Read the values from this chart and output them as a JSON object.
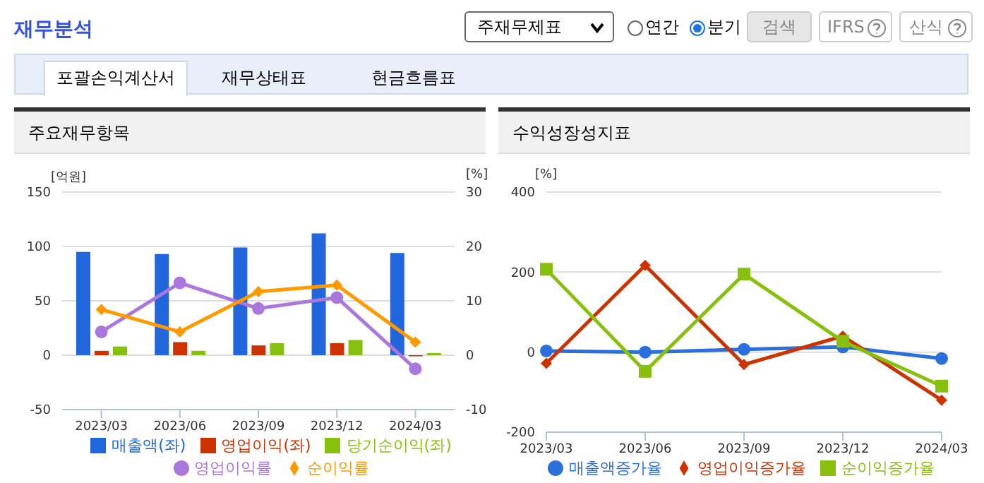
{
  "chart_data": [
    {
      "type": "other",
      "title": "재무분석",
      "annotations": [
        "주재무제표",
        "연간",
        "분기",
        "검색",
        "IFRS",
        "산식",
        "포괄손익계산서",
        "재무상태표",
        "현금흐름표"
      ]
    },
    {
      "type": "bar",
      "title": "주요재무항목",
      "ylabel": "[억원]",
      "y2label": "[%]",
      "categories": [
        "2023/03",
        "2023/06",
        "2023/09",
        "2023/12",
        "2024/03"
      ],
      "series": [
        {
          "name": "매출액(좌)",
          "color": "#2266dd",
          "values": [
            95,
            93,
            99,
            112,
            94
          ]
        },
        {
          "name": "영업이익(좌)",
          "color": "#cc3300",
          "values": [
            4,
            12,
            9,
            11,
            -1
          ]
        },
        {
          "name": "당기순이익(좌)",
          "color": "#88c010",
          "values": [
            8,
            4,
            11,
            14,
            2
          ]
        },
        {
          "name": "영업이익률",
          "type": "line",
          "axis": "y2",
          "marker": "circle",
          "color": "#aa77dd",
          "values": [
            4.3,
            13.3,
            8.6,
            10.6,
            -2.5
          ]
        },
        {
          "name": "순이익률",
          "type": "line",
          "axis": "y2",
          "marker": "diamond",
          "color": "#ff9900",
          "values": [
            8.4,
            4.3,
            11.7,
            12.9,
            2.4
          ]
        }
      ],
      "ylim": [
        -50,
        150
      ],
      "yticks": [
        -50,
        0,
        50,
        100,
        150
      ],
      "y2lim": [
        -10,
        30
      ],
      "y2ticks": [
        -10,
        0,
        10,
        20,
        30
      ],
      "grid": "y",
      "legend": "bottom"
    },
    {
      "type": "line",
      "title": "수익성장성지표",
      "ylabel": "[%]",
      "categories": [
        "2023/03",
        "2023/06",
        "2023/09",
        "2023/12",
        "2024/03"
      ],
      "series": [
        {
          "name": "매출액증가율",
          "color": "#2a6fdb",
          "marker": "circle",
          "values": [
            3,
            0,
            7,
            13,
            -16
          ]
        },
        {
          "name": "영업이익증가율",
          "color": "#cc3300",
          "marker": "diamond",
          "values": [
            -28,
            217,
            -31,
            40,
            -120
          ]
        },
        {
          "name": "순이익증가율",
          "color": "#88c010",
          "marker": "square",
          "values": [
            207,
            -48,
            195,
            27,
            -85
          ]
        }
      ],
      "ylim": [
        -200,
        400
      ],
      "yticks": [
        -200,
        0,
        200,
        400
      ],
      "grid": "y",
      "legend": "bottom"
    }
  ]
}
